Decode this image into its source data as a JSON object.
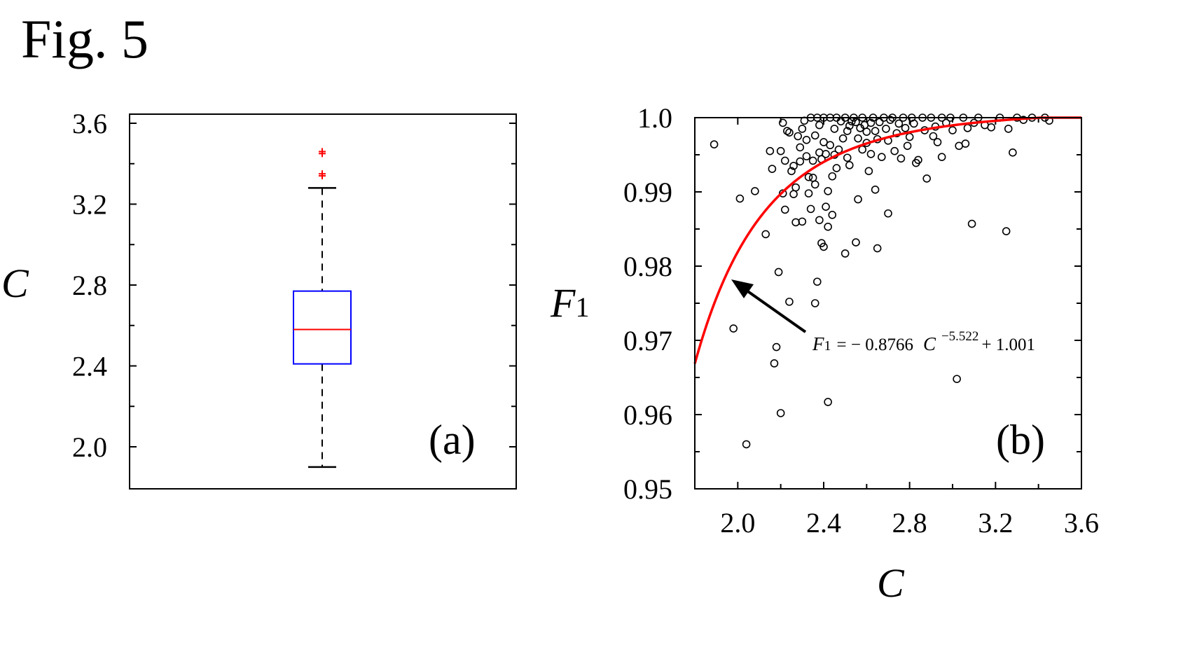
{
  "figure_title": "Fig. 5",
  "colors": {
    "box": "#0000ff",
    "median": "#ff0000",
    "outlier": "#ff0000",
    "fit": "#ff0000",
    "points": "#000000"
  },
  "chart_data": [
    {
      "type": "box",
      "panel_label": "(a)",
      "ylabel": "C",
      "ylim": [
        1.8,
        3.6
      ],
      "ytick_labels": [
        "3.6",
        "3.2",
        "2.8",
        "2.4",
        "2.0"
      ],
      "ytick_values": [
        3.6,
        3.2,
        2.8,
        2.4,
        2.0
      ],
      "stats": {
        "q1": 2.41,
        "median": 2.58,
        "q3": 2.77,
        "whisker_low": 1.9,
        "whisker_high": 3.28
      },
      "outliers": [
        3.46,
        3.45,
        3.35,
        3.34
      ]
    },
    {
      "type": "scatter",
      "panel_label": "(b)",
      "xlabel": "C",
      "ylabel_main": "F",
      "ylabel_sub": "1",
      "xlim": [
        1.8,
        3.6
      ],
      "ylim": [
        0.95,
        1.0
      ],
      "xtick_labels": [
        "2.0",
        "2.4",
        "2.8",
        "3.2",
        "3.6"
      ],
      "xtick_values": [
        2.0,
        2.4,
        2.8,
        3.2,
        3.6
      ],
      "ytick_labels": [
        "1.0",
        "0.99",
        "0.98",
        "0.97",
        "0.96",
        "0.95"
      ],
      "ytick_values": [
        1.0,
        0.99,
        0.98,
        0.97,
        0.96,
        0.95
      ],
      "fit": {
        "a": -0.8766,
        "b": -5.522,
        "c": 1.001,
        "label_lhs_main": "F",
        "label_lhs_sub": "1",
        "label_eq": "= − 0.8766",
        "label_var": "C",
        "label_exp": "−5.522",
        "label_rhs": "+ 1.001"
      },
      "points": [
        [
          1.89,
          0.9964
        ],
        [
          1.98,
          0.9716
        ],
        [
          2.01,
          0.9891
        ],
        [
          2.04,
          0.956
        ],
        [
          2.08,
          0.9901
        ],
        [
          2.13,
          0.9843
        ],
        [
          2.15,
          0.9955
        ],
        [
          2.16,
          0.9931
        ],
        [
          2.17,
          0.9669
        ],
        [
          2.18,
          0.9691
        ],
        [
          2.19,
          0.9792
        ],
        [
          2.2,
          0.9602
        ],
        [
          2.2,
          0.9955
        ],
        [
          2.21,
          0.9898
        ],
        [
          2.21,
          0.9993
        ],
        [
          2.22,
          0.9876
        ],
        [
          2.22,
          0.9942
        ],
        [
          2.23,
          0.9982
        ],
        [
          2.24,
          0.9752
        ],
        [
          2.24,
          0.998
        ],
        [
          2.25,
          0.9928
        ],
        [
          2.26,
          0.9897
        ],
        [
          2.26,
          0.9935
        ],
        [
          2.27,
          0.9906
        ],
        [
          2.27,
          0.9859
        ],
        [
          2.28,
          0.9975
        ],
        [
          2.29,
          0.996
        ],
        [
          2.29,
          0.9941
        ],
        [
          2.3,
          0.9985
        ],
        [
          2.3,
          0.986
        ],
        [
          2.31,
          0.9996
        ],
        [
          2.32,
          0.9948
        ],
        [
          2.32,
          0.997
        ],
        [
          2.33,
          0.9898
        ],
        [
          2.33,
          0.992
        ],
        [
          2.34,
          1.0
        ],
        [
          2.34,
          0.9877
        ],
        [
          2.35,
          0.9942
        ],
        [
          2.35,
          0.9919
        ],
        [
          2.36,
          0.975
        ],
        [
          2.36,
          0.991
        ],
        [
          2.36,
          0.9976
        ],
        [
          2.37,
          0.9779
        ],
        [
          2.37,
          1.0
        ],
        [
          2.38,
          0.999
        ],
        [
          2.38,
          0.9862
        ],
        [
          2.38,
          0.9953
        ],
        [
          2.39,
          0.9831
        ],
        [
          2.39,
          0.9944
        ],
        [
          2.4,
          0.9826
        ],
        [
          2.4,
          0.9967
        ],
        [
          2.4,
          1.0
        ],
        [
          2.41,
          0.9951
        ],
        [
          2.41,
          0.988
        ],
        [
          2.42,
          0.9853
        ],
        [
          2.42,
          0.9901
        ],
        [
          2.42,
          0.9617
        ],
        [
          2.43,
          1.0
        ],
        [
          2.43,
          0.9963
        ],
        [
          2.44,
          0.9869
        ],
        [
          2.44,
          0.9921
        ],
        [
          2.45,
          0.995
        ],
        [
          2.45,
          0.9985
        ],
        [
          2.46,
          0.9932
        ],
        [
          2.46,
          1.0
        ],
        [
          2.47,
          0.9957
        ],
        [
          2.48,
          0.9995
        ],
        [
          2.49,
          0.9972
        ],
        [
          2.5,
          0.9817
        ],
        [
          2.5,
          1.0
        ],
        [
          2.51,
          0.9946
        ],
        [
          2.51,
          0.9982
        ],
        [
          2.52,
          0.9989
        ],
        [
          2.52,
          0.9936
        ],
        [
          2.53,
          0.9995
        ],
        [
          2.54,
          1.0
        ],
        [
          2.55,
          0.9994
        ],
        [
          2.55,
          0.9832
        ],
        [
          2.56,
          0.9972
        ],
        [
          2.56,
          0.989
        ],
        [
          2.57,
          0.9986
        ],
        [
          2.58,
          1.0
        ],
        [
          2.58,
          0.9957
        ],
        [
          2.59,
          0.999
        ],
        [
          2.6,
          0.9981
        ],
        [
          2.6,
          0.9966
        ],
        [
          2.61,
          0.9928
        ],
        [
          2.62,
          0.9993
        ],
        [
          2.62,
          0.9951
        ],
        [
          2.63,
          1.0
        ],
        [
          2.64,
          0.9982
        ],
        [
          2.64,
          0.9903
        ],
        [
          2.65,
          0.9971
        ],
        [
          2.65,
          0.9824
        ],
        [
          2.66,
          0.9994
        ],
        [
          2.67,
          0.9947
        ],
        [
          2.68,
          1.0
        ],
        [
          2.69,
          0.9985
        ],
        [
          2.7,
          0.9871
        ],
        [
          2.7,
          0.9969
        ],
        [
          2.71,
          0.9997
        ],
        [
          2.72,
          1.0
        ],
        [
          2.73,
          0.9955
        ],
        [
          2.74,
          0.9979
        ],
        [
          2.75,
          0.9992
        ],
        [
          2.76,
          0.9945
        ],
        [
          2.77,
          1.0
        ],
        [
          2.78,
          0.9986
        ],
        [
          2.79,
          0.9962
        ],
        [
          2.8,
          0.9974
        ],
        [
          2.81,
          1.0
        ],
        [
          2.82,
          0.9992
        ],
        [
          2.83,
          0.9939
        ],
        [
          2.84,
          0.9943
        ],
        [
          2.86,
          1.0
        ],
        [
          2.87,
          0.9983
        ],
        [
          2.88,
          0.9918
        ],
        [
          2.9,
          1.0
        ],
        [
          2.91,
          0.9975
        ],
        [
          2.92,
          0.9988
        ],
        [
          2.93,
          0.9967
        ],
        [
          2.95,
          1.0
        ],
        [
          2.95,
          0.9947
        ],
        [
          2.97,
          0.9993
        ],
        [
          2.99,
          1.0
        ],
        [
          3.0,
          0.9983
        ],
        [
          3.02,
          0.9648
        ],
        [
          3.03,
          0.9962
        ],
        [
          3.05,
          1.0
        ],
        [
          3.06,
          0.9965
        ],
        [
          3.07,
          0.9986
        ],
        [
          3.09,
          0.9857
        ],
        [
          3.1,
          0.9993
        ],
        [
          3.12,
          1.0
        ],
        [
          3.15,
          0.999
        ],
        [
          3.18,
          0.9987
        ],
        [
          3.22,
          1.0
        ],
        [
          3.25,
          0.9847
        ],
        [
          3.26,
          0.9985
        ],
        [
          3.28,
          0.9953
        ],
        [
          3.3,
          1.0
        ],
        [
          3.33,
          0.9997
        ],
        [
          3.37,
          1.0
        ],
        [
          3.43,
          1.0
        ],
        [
          3.45,
          0.9996
        ]
      ]
    }
  ]
}
